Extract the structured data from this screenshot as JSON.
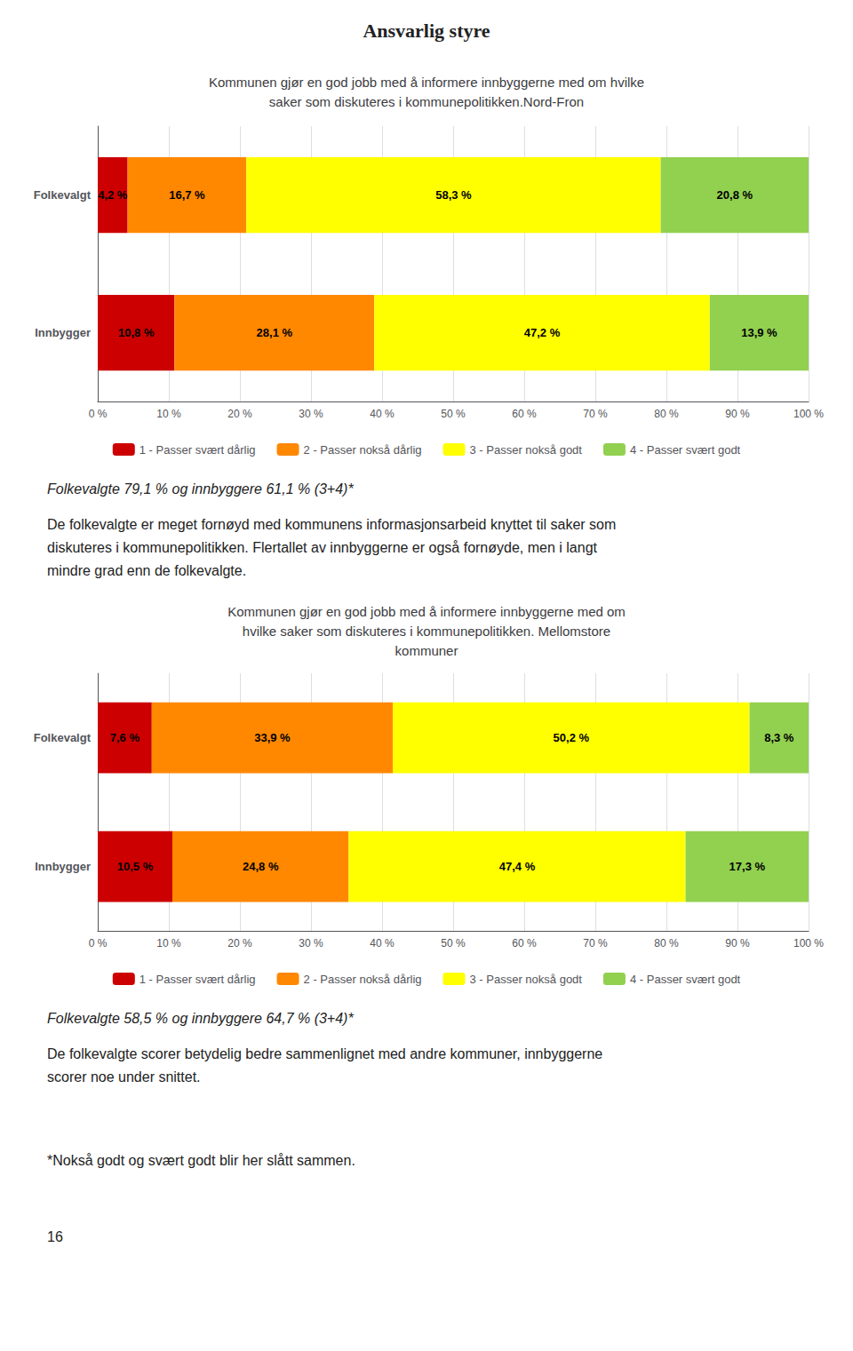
{
  "title": "Ansvarlig styre",
  "annotations": [
    "*Nokså godt og svært godt blir her slått sammen.",
    "16"
  ],
  "chart_data": [
    {
      "type": "bar",
      "orientation": "horizontal",
      "stacked": true,
      "data_labels": true,
      "grid": true,
      "legend": "bottom",
      "title": "Kommunen gjør en god jobb med å informere innbyggerne med om hvilke\nsaker som diskuteres i kommunepolitikken.Nord-Fron",
      "categories": [
        "Folkevalgt",
        "Innbygger"
      ],
      "xlim": [
        0,
        100
      ],
      "xticks": [
        {
          "value": 0,
          "label": "0 %"
        },
        {
          "value": 10,
          "label": "10 %"
        },
        {
          "value": 20,
          "label": "20 %"
        },
        {
          "value": 30,
          "label": "30 %"
        },
        {
          "value": 40,
          "label": "40 %"
        },
        {
          "value": 50,
          "label": "50 %"
        },
        {
          "value": 60,
          "label": "60 %"
        },
        {
          "value": 70,
          "label": "70 %"
        },
        {
          "value": 80,
          "label": "80 %"
        },
        {
          "value": 90,
          "label": "90 %"
        },
        {
          "value": 100,
          "label": "100 %"
        }
      ],
      "series": [
        {
          "name": "1 - Passer svært dårlig",
          "color": "#cc0000",
          "values": [
            4.2,
            10.8
          ],
          "value_labels": [
            "4,2 %",
            "10,8 %"
          ]
        },
        {
          "name": "2 - Passer nokså dårlig",
          "color": "#ff8800",
          "values": [
            16.7,
            28.1
          ],
          "value_labels": [
            "16,7 %",
            "28,1 %"
          ]
        },
        {
          "name": "3 - Passer nokså godt",
          "color": "#ffff00",
          "values": [
            58.3,
            47.2
          ],
          "value_labels": [
            "58,3 %",
            "47,2 %"
          ]
        },
        {
          "name": "4 - Passer svært godt",
          "color": "#92d050",
          "values": [
            20.8,
            13.9
          ],
          "value_labels": [
            "20,8 %",
            "13,9 %"
          ]
        }
      ],
      "annotations": [
        "Folkevalgte 79,1 % og innbyggere 61,1 % (3+4)*",
        "De folkevalgte er meget fornøyd med kommunens informasjonsarbeid knyttet til saker som",
        "diskuteres i kommunepolitikken. Flertallet av innbyggerne er også fornøyde, men i langt",
        "mindre grad enn de folkevalgte."
      ]
    },
    {
      "type": "bar",
      "orientation": "horizontal",
      "stacked": true,
      "data_labels": true,
      "grid": true,
      "legend": "bottom",
      "title": "Kommunen gjør en god jobb med å informere innbyggerne med om\nhvilke saker som diskuteres i kommunepolitikken. Mellomstore\nkommuner",
      "categories": [
        "Folkevalgt",
        "Innbygger"
      ],
      "xlim": [
        0,
        100
      ],
      "xticks": [
        {
          "value": 0,
          "label": "0 %"
        },
        {
          "value": 10,
          "label": "10 %"
        },
        {
          "value": 20,
          "label": "20 %"
        },
        {
          "value": 30,
          "label": "30 %"
        },
        {
          "value": 40,
          "label": "40 %"
        },
        {
          "value": 50,
          "label": "50 %"
        },
        {
          "value": 60,
          "label": "60 %"
        },
        {
          "value": 70,
          "label": "70 %"
        },
        {
          "value": 80,
          "label": "80 %"
        },
        {
          "value": 90,
          "label": "90 %"
        },
        {
          "value": 100,
          "label": "100 %"
        }
      ],
      "series": [
        {
          "name": "1 - Passer svært dårlig",
          "color": "#cc0000",
          "values": [
            7.6,
            10.5
          ],
          "value_labels": [
            "7,6 %",
            "10,5 %"
          ]
        },
        {
          "name": "2 - Passer nokså dårlig",
          "color": "#ff8800",
          "values": [
            33.9,
            24.8
          ],
          "value_labels": [
            "33,9 %",
            "24,8 %"
          ]
        },
        {
          "name": "3 - Passer nokså godt",
          "color": "#ffff00",
          "values": [
            50.2,
            47.4
          ],
          "value_labels": [
            "50,2 %",
            "47,4 %"
          ]
        },
        {
          "name": "4 - Passer svært godt",
          "color": "#92d050",
          "values": [
            8.3,
            17.3
          ],
          "value_labels": [
            "8,3 %",
            "17,3 %"
          ]
        }
      ],
      "annotations": [
        "Folkevalgte 58,5 % og innbyggere 64,7 % (3+4)*",
        "De folkevalgte scorer betydelig bedre sammenlignet med andre kommuner, innbyggerne",
        "scorer noe under snittet."
      ]
    }
  ]
}
